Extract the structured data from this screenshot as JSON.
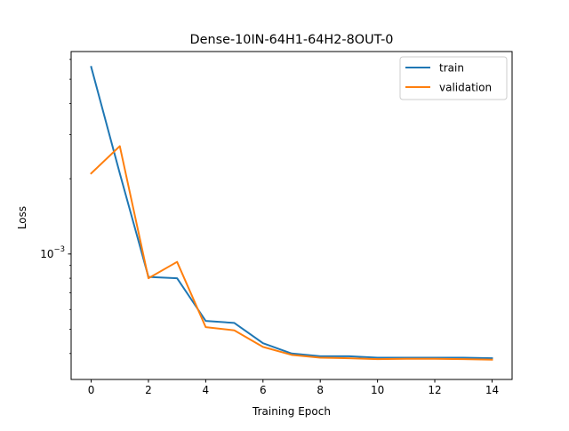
{
  "chart_data": {
    "type": "line",
    "title": "Dense-10IN-64H1-64H2-8OUT-0",
    "xlabel": "Training Epoch",
    "ylabel": "Loss",
    "yscale": "log",
    "xlim": [
      -0.7,
      14.7
    ],
    "ylim": [
      0.000315,
      0.00645
    ],
    "x_ticks": [
      0,
      2,
      4,
      6,
      8,
      10,
      12,
      14
    ],
    "y_major_ticks": [
      {
        "value": 0.001,
        "base": "10",
        "exp": "−3"
      }
    ],
    "y_minor_ticks": [
      0.0004,
      0.0005,
      0.0006,
      0.0007,
      0.0008,
      0.0009,
      0.002,
      0.003,
      0.004,
      0.005,
      0.006
    ],
    "grid": false,
    "legend_position": "upper right",
    "x": [
      0,
      1,
      2,
      3,
      4,
      5,
      6,
      7,
      8,
      9,
      10,
      11,
      12,
      13,
      14
    ],
    "series": [
      {
        "name": "train",
        "color": "#1f77b4",
        "values": [
          0.0056,
          0.0021,
          0.00081,
          0.0008,
          0.00054,
          0.00053,
          0.00044,
          0.0004,
          0.00039,
          0.00039,
          0.000385,
          0.000385,
          0.000385,
          0.000385,
          0.000383
        ]
      },
      {
        "name": "validation",
        "color": "#ff7f0e",
        "values": [
          0.0021,
          0.0027,
          0.0008,
          0.00093,
          0.00051,
          0.000495,
          0.000425,
          0.000395,
          0.000385,
          0.000383,
          0.00038,
          0.000381,
          0.000381,
          0.00038,
          0.000378
        ]
      }
    ]
  }
}
